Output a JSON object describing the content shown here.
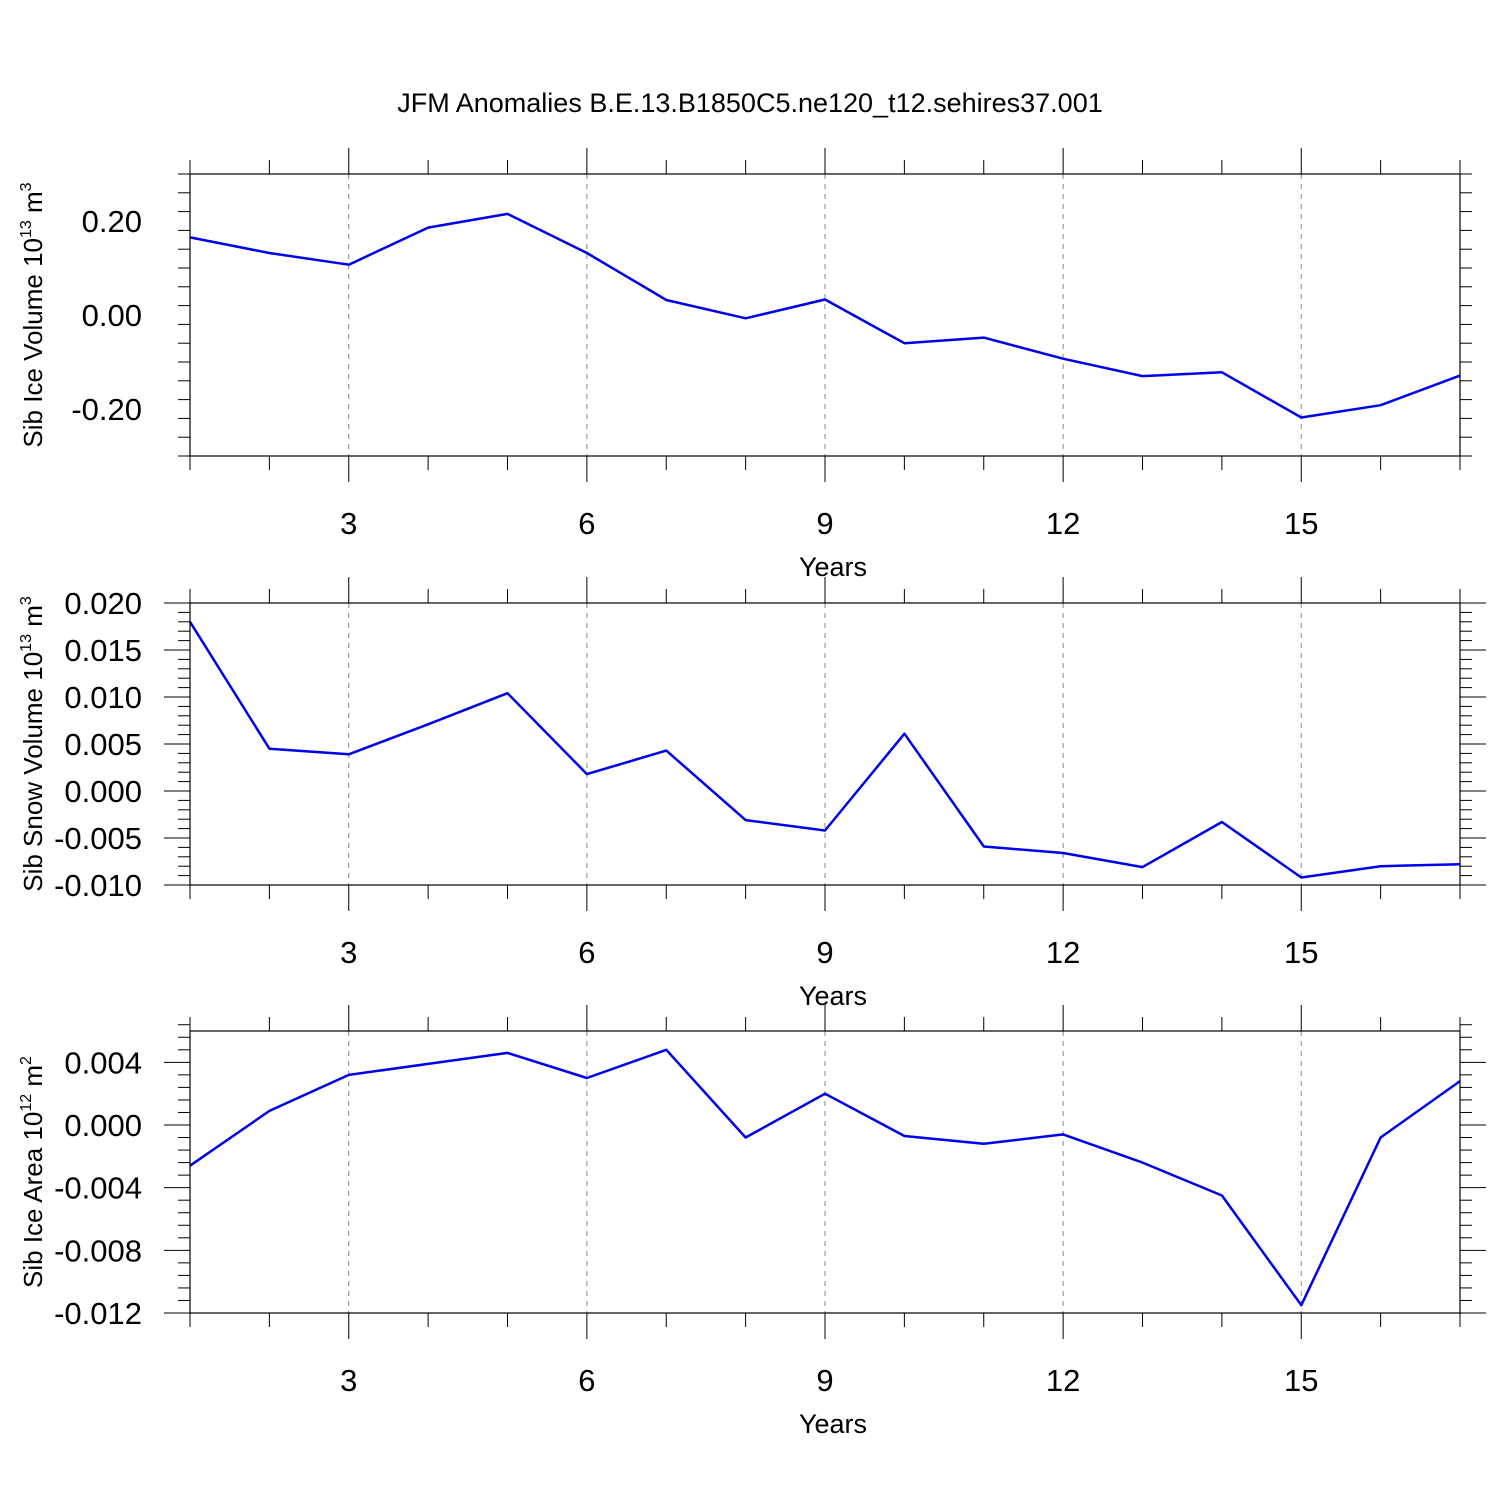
{
  "title": "JFM Anomalies B.E.13.B1850C5.ne120_t12.sehires37.001",
  "colors": {
    "line": "#0000ee",
    "axis": "#000000",
    "grid": "#888888"
  },
  "chart_data": [
    {
      "type": "line",
      "ylabel": "Sib Ice Volume 10",
      "ylabel_exp": "13",
      "ylabel_unit": " m",
      "ylabel_unit_exp": "3",
      "xlabel": "Years",
      "xlim": [
        1,
        17
      ],
      "ylim": [
        -0.3,
        0.3
      ],
      "yticks": [
        -0.2,
        0.0,
        0.2
      ],
      "ytick_labels": [
        "-0.20",
        "0.00",
        "0.20"
      ],
      "xticks": [
        3,
        6,
        9,
        12,
        15
      ],
      "xtick_labels": [
        "3",
        "6",
        "9",
        "12",
        "15"
      ],
      "x": [
        1,
        2,
        3,
        4,
        5,
        6,
        7,
        8,
        9,
        10,
        11,
        12,
        13,
        14,
        15,
        16,
        17
      ],
      "y": [
        0.165,
        0.132,
        0.107,
        0.186,
        0.215,
        0.132,
        0.032,
        -0.007,
        0.033,
        -0.06,
        -0.048,
        -0.093,
        -0.13,
        -0.122,
        -0.218,
        -0.192,
        -0.129
      ]
    },
    {
      "type": "line",
      "ylabel": "Sib Snow Volume 10",
      "ylabel_exp": "13",
      "ylabel_unit": " m",
      "ylabel_unit_exp": "3",
      "xlabel": "Years",
      "xlim": [
        1,
        17
      ],
      "ylim": [
        -0.01,
        0.02
      ],
      "yticks": [
        -0.01,
        -0.005,
        0.0,
        0.005,
        0.01,
        0.015,
        0.02
      ],
      "ytick_labels": [
        "-0.010",
        "-0.005",
        "0.000",
        "0.005",
        "0.010",
        "0.015",
        "0.020"
      ],
      "xticks": [
        3,
        6,
        9,
        12,
        15
      ],
      "xtick_labels": [
        "3",
        "6",
        "9",
        "12",
        "15"
      ],
      "x": [
        1,
        2,
        3,
        4,
        5,
        6,
        7,
        8,
        9,
        10,
        11,
        12,
        13,
        14,
        15,
        16,
        17
      ],
      "y": [
        0.018,
        0.0045,
        0.0039,
        0.0071,
        0.0104,
        0.0018,
        0.0043,
        -0.0031,
        -0.0042,
        0.0061,
        -0.0059,
        -0.0066,
        -0.0081,
        -0.0033,
        -0.0092,
        -0.008,
        -0.0078
      ]
    },
    {
      "type": "line",
      "ylabel": "Sib Ice Area 10",
      "ylabel_exp": "12",
      "ylabel_unit": " m",
      "ylabel_unit_exp": "2",
      "xlabel": "Years",
      "xlim": [
        1,
        17
      ],
      "ylim": [
        -0.012,
        0.006
      ],
      "yticks": [
        -0.012,
        -0.008,
        -0.004,
        0.0,
        0.004
      ],
      "ytick_labels": [
        "-0.012",
        "-0.008",
        "-0.004",
        "0.000",
        "0.004"
      ],
      "xticks": [
        3,
        6,
        9,
        12,
        15
      ],
      "xtick_labels": [
        "3",
        "6",
        "9",
        "12",
        "15"
      ],
      "x": [
        1,
        2,
        3,
        4,
        5,
        6,
        7,
        8,
        9,
        10,
        11,
        12,
        13,
        14,
        15,
        16,
        17
      ],
      "y": [
        -0.0026,
        0.0009,
        0.0032,
        0.0039,
        0.0046,
        0.003,
        0.0048,
        -0.0008,
        0.002,
        -0.0007,
        -0.0012,
        -0.0006,
        -0.0024,
        -0.0045,
        -0.0115,
        -0.0008,
        0.0028
      ]
    }
  ]
}
